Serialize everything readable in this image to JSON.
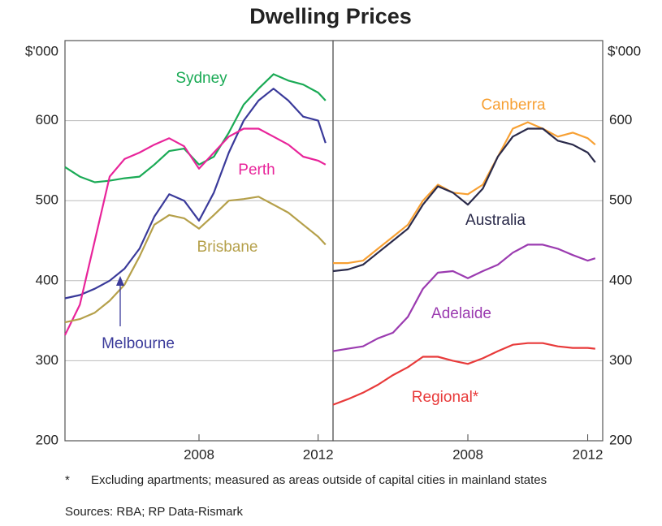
{
  "title": "Dwelling Prices",
  "notes": {
    "marker": "*",
    "text": "Excluding apartments; measured as areas outside of capital cities in mainland states",
    "sources": "Sources: RBA; RP Data-Rismark"
  },
  "chart_data": [
    {
      "type": "line",
      "y_unit": "$'000",
      "x": [
        2003.5,
        2004,
        2004.5,
        2005,
        2005.5,
        2006,
        2006.5,
        2007,
        2007.5,
        2008,
        2008.5,
        2009,
        2009.5,
        2010,
        2010.5,
        2011,
        2011.5,
        2012,
        2012.25
      ],
      "xlim": [
        2003.5,
        2012.5
      ],
      "xticks": [
        2008,
        2012
      ],
      "ylim": [
        200,
        700
      ],
      "yticks": [
        200,
        300,
        400,
        500,
        600
      ],
      "grid": true,
      "series": [
        {
          "name": "Sydney",
          "color": "#1aaa55",
          "values": [
            542,
            530,
            523,
            525,
            528,
            530,
            545,
            562,
            565,
            545,
            555,
            585,
            620,
            640,
            658,
            650,
            645,
            635,
            625
          ]
        },
        {
          "name": "Melbourne",
          "color": "#3a3a9a",
          "values": [
            378,
            382,
            390,
            400,
            415,
            440,
            480,
            508,
            500,
            475,
            510,
            560,
            600,
            625,
            640,
            625,
            605,
            600,
            572
          ]
        },
        {
          "name": "Perth",
          "color": "#e8249a",
          "values": [
            332,
            370,
            450,
            530,
            552,
            560,
            570,
            578,
            568,
            540,
            560,
            580,
            590,
            590,
            580,
            570,
            555,
            550,
            545
          ]
        },
        {
          "name": "Brisbane",
          "color": "#b5a04a",
          "values": [
            348,
            352,
            360,
            375,
            395,
            430,
            470,
            482,
            478,
            465,
            482,
            500,
            502,
            505,
            495,
            485,
            470,
            455,
            445
          ]
        }
      ]
    },
    {
      "type": "line",
      "y_unit": "$'000",
      "x": [
        2003.5,
        2004,
        2004.5,
        2005,
        2005.5,
        2006,
        2006.5,
        2007,
        2007.5,
        2008,
        2008.5,
        2009,
        2009.5,
        2010,
        2010.5,
        2011,
        2011.5,
        2012,
        2012.25
      ],
      "xlim": [
        2003.5,
        2012.5
      ],
      "xticks": [
        2008,
        2012
      ],
      "ylim": [
        200,
        700
      ],
      "yticks": [
        200,
        300,
        400,
        500,
        600
      ],
      "grid": true,
      "series": [
        {
          "name": "Canberra",
          "color": "#f7a033",
          "values": [
            422,
            422,
            425,
            440,
            455,
            470,
            500,
            520,
            510,
            508,
            520,
            555,
            590,
            598,
            590,
            580,
            585,
            578,
            570
          ]
        },
        {
          "name": "Australia",
          "color": "#2a2a4a",
          "values": [
            412,
            414,
            420,
            435,
            450,
            465,
            495,
            518,
            510,
            495,
            515,
            555,
            580,
            590,
            590,
            575,
            570,
            560,
            548
          ]
        },
        {
          "name": "Adelaide",
          "color": "#9b3bb0",
          "values": [
            312,
            315,
            318,
            328,
            335,
            355,
            390,
            410,
            412,
            403,
            412,
            420,
            435,
            445,
            445,
            440,
            432,
            425,
            428
          ]
        },
        {
          "name": "Regional*",
          "color": "#e83a3a",
          "values": [
            245,
            252,
            260,
            270,
            282,
            292,
            305,
            305,
            300,
            296,
            303,
            312,
            320,
            322,
            322,
            318,
            316,
            316,
            315
          ]
        }
      ]
    }
  ]
}
